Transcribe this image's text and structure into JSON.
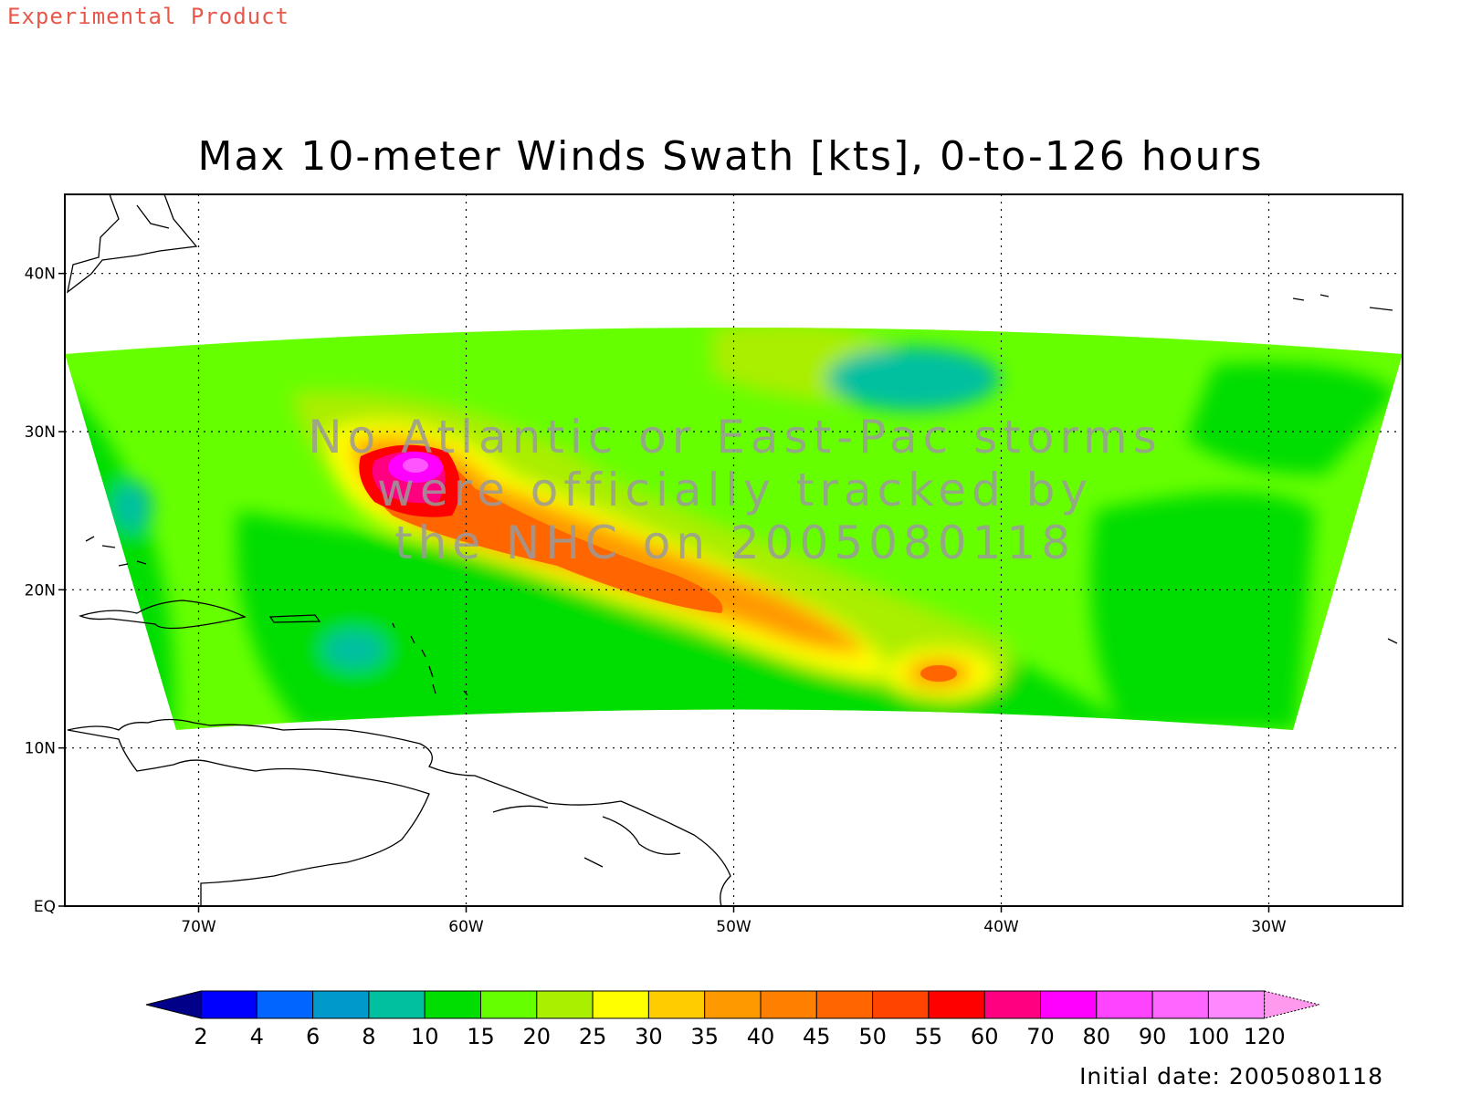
{
  "header": {
    "product_label": "Experimental Product"
  },
  "map": {
    "title": "Max 10-meter Winds Swath [kts], 0-to-126 hours",
    "notice_lines": [
      "No Atlantic or East-Pac storms",
      "were officially tracked by",
      "the NHC on 2005080118"
    ],
    "lat_labels": [
      "40N",
      "30N",
      "20N",
      "10N",
      "EQ"
    ],
    "lon_labels": [
      "70W",
      "60W",
      "50W",
      "40W",
      "30W"
    ],
    "lat_range": [
      0,
      45
    ],
    "lon_range": [
      -75,
      -25
    ],
    "colors": {
      "c10": "#00dd00",
      "c15": "#66ff00",
      "c20": "#aaee00",
      "c25": "#ffff00",
      "c30": "#ffcc00",
      "c35": "#ff9900",
      "c40": "#ff8000",
      "c45": "#ff6600",
      "c50": "#ff4400",
      "c55": "#ff0000",
      "c60": "#ff0080",
      "c70": "#ff00ff",
      "c80": "#ff55ff",
      "c8": "#00c0a0",
      "c6": "#0099cc"
    }
  },
  "colorbar": {
    "labels": [
      "2",
      "4",
      "6",
      "8",
      "10",
      "15",
      "20",
      "25",
      "30",
      "35",
      "40",
      "45",
      "50",
      "55",
      "60",
      "70",
      "80",
      "90",
      "100",
      "120"
    ],
    "colors": [
      "#000088",
      "#0000ff",
      "#0066ff",
      "#0099cc",
      "#00c0a0",
      "#00dd00",
      "#66ff00",
      "#aaee00",
      "#ffff00",
      "#ffcc00",
      "#ff9900",
      "#ff8000",
      "#ff6600",
      "#ff4400",
      "#ff0000",
      "#ff0080",
      "#ff00ff",
      "#ff44ff",
      "#ff66ff",
      "#ff88ff",
      "#ff99ee"
    ]
  },
  "footer": {
    "initial_date": "Initial date: 2005080118"
  }
}
